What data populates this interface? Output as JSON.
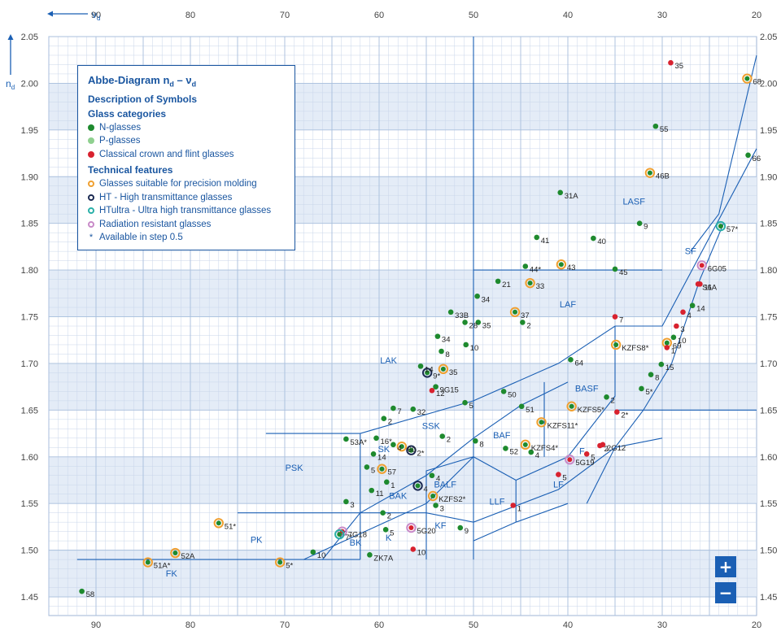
{
  "colors": {
    "n_glass": "#1e8a2e",
    "p_glass": "#8fd08f",
    "classical": "#d8222f",
    "precision_ring": "#f0a030",
    "ht_ring": "#1b2a52",
    "htultra_ring": "#2ab0a8",
    "rad_ring": "#c88ac8",
    "boundary": "#1a5fb4",
    "band": "#e4ecf7",
    "grid": "#c9d6ea",
    "zoom": "#1a5fb4"
  },
  "axes": {
    "x_name_main": "ν",
    "x_name_sub": "d",
    "y_name_main": "n",
    "y_name_sub": "d"
  },
  "legend": {
    "title": "Abbe-Diagram nₐ – νₐ",
    "title_main": "Abbe-Diagram n",
    "title_sub1": "d",
    "title_mid": " – ν",
    "title_sub2": "d",
    "subtitle": "Description of Symbols",
    "cat_head": "Glass categories",
    "cat_items": [
      "N-glasses",
      "P-glasses",
      "Classical crown and flint glasses"
    ],
    "tech_head": "Technical features",
    "tech_items": [
      "Glasses suitable for precision molding",
      "HT - High transmittance glasses",
      "HTultra - Ultra high transmittance glasses",
      "Radiation resistant glasses",
      "Available in step 0.5"
    ]
  },
  "zoom": {
    "in_label": "+",
    "out_label": "−"
  },
  "chart_data": {
    "type": "scatter",
    "title": "Abbe-Diagram nd – νd",
    "xlabel": "νd",
    "ylabel": "nd",
    "xlim": [
      95,
      20
    ],
    "ylim": [
      1.43,
      2.05
    ],
    "x_ticks": [
      90,
      80,
      70,
      60,
      50,
      40,
      30,
      20
    ],
    "y_ticks": [
      1.45,
      1.5,
      1.55,
      1.6,
      1.65,
      1.7,
      1.75,
      1.8,
      1.85,
      1.9,
      1.95,
      2.0,
      2.05
    ],
    "y_tick_labels": [
      "1.45",
      "1.50",
      "1.55",
      "1.60",
      "1.65",
      "1.70",
      "1.75",
      "1.80",
      "1.85",
      "1.90",
      "1.95",
      "2.00",
      "2.05"
    ],
    "grid": true,
    "legend_position": "top-left",
    "regions": [
      "LASF",
      "LAF",
      "LAK",
      "BASF",
      "SSK",
      "BAF",
      "PSK",
      "SK",
      "BALF",
      "BAK",
      "F",
      "LF",
      "LLF",
      "KF",
      "K",
      "BK",
      "PK",
      "FK",
      "SF"
    ],
    "glasses": [
      {
        "x": 29.1,
        "y": 2.022,
        "label": "35",
        "cat": "C",
        "ring": ""
      },
      {
        "x": 21.0,
        "y": 2.005,
        "label": "68",
        "cat": "N",
        "ring": "M"
      },
      {
        "x": 30.7,
        "y": 1.954,
        "label": "55",
        "cat": "N",
        "ring": ""
      },
      {
        "x": 20.9,
        "y": 1.923,
        "label": "66",
        "cat": "N",
        "ring": ""
      },
      {
        "x": 31.3,
        "y": 1.904,
        "label": "46B",
        "cat": "N",
        "ring": "M"
      },
      {
        "x": 40.8,
        "y": 1.883,
        "label": "31A",
        "cat": "N",
        "ring": ""
      },
      {
        "x": 32.4,
        "y": 1.85,
        "label": "9",
        "cat": "N",
        "ring": ""
      },
      {
        "x": 23.8,
        "y": 1.847,
        "label": "57*",
        "cat": "N",
        "ring": "U"
      },
      {
        "x": 43.3,
        "y": 1.835,
        "label": "41",
        "cat": "N",
        "ring": ""
      },
      {
        "x": 37.3,
        "y": 1.834,
        "label": "40",
        "cat": "N",
        "ring": ""
      },
      {
        "x": 40.7,
        "y": 1.806,
        "label": "43",
        "cat": "N",
        "ring": "M"
      },
      {
        "x": 25.8,
        "y": 1.805,
        "label": "6G05",
        "cat": "C",
        "ring": "R"
      },
      {
        "x": 44.5,
        "y": 1.804,
        "label": "44*",
        "cat": "N",
        "ring": ""
      },
      {
        "x": 35.0,
        "y": 1.801,
        "label": "45",
        "cat": "N",
        "ring": ""
      },
      {
        "x": 47.4,
        "y": 1.788,
        "label": "21",
        "cat": "N",
        "ring": ""
      },
      {
        "x": 44.0,
        "y": 1.786,
        "label": "33",
        "cat": "N",
        "ring": "M"
      },
      {
        "x": 26.0,
        "y": 1.785,
        "label": "11",
        "cat": "C",
        "ring": ""
      },
      {
        "x": 26.2,
        "y": 1.785,
        "label": "S6A",
        "cat": "C",
        "ring": ""
      },
      {
        "x": 49.6,
        "y": 1.772,
        "label": "34",
        "cat": "N",
        "ring": ""
      },
      {
        "x": 26.8,
        "y": 1.762,
        "label": "14",
        "cat": "N",
        "ring": ""
      },
      {
        "x": 45.6,
        "y": 1.755,
        "label": "37",
        "cat": "N",
        "ring": "M"
      },
      {
        "x": 52.4,
        "y": 1.755,
        "label": "33B",
        "cat": "N",
        "ring": ""
      },
      {
        "x": 27.8,
        "y": 1.755,
        "label": "4",
        "cat": "C",
        "ring": ""
      },
      {
        "x": 35.0,
        "y": 1.75,
        "label": "7",
        "cat": "C",
        "ring": ""
      },
      {
        "x": 50.9,
        "y": 1.744,
        "label": "28",
        "cat": "N",
        "ring": ""
      },
      {
        "x": 49.5,
        "y": 1.744,
        "label": "35",
        "cat": "N",
        "ring": ""
      },
      {
        "x": 44.8,
        "y": 1.744,
        "label": "2",
        "cat": "N",
        "ring": ""
      },
      {
        "x": 28.5,
        "y": 1.74,
        "label": "3",
        "cat": "C",
        "ring": ""
      },
      {
        "x": 28.8,
        "y": 1.728,
        "label": "10",
        "cat": "N",
        "ring": ""
      },
      {
        "x": 53.8,
        "y": 1.729,
        "label": "34",
        "cat": "N",
        "ring": ""
      },
      {
        "x": 29.5,
        "y": 1.722,
        "label": "69",
        "cat": "N",
        "ring": "M"
      },
      {
        "x": 34.9,
        "y": 1.72,
        "label": "KZFS8*",
        "cat": "N",
        "ring": "M"
      },
      {
        "x": 29.5,
        "y": 1.717,
        "label": "1",
        "cat": "C",
        "ring": ""
      },
      {
        "x": 50.8,
        "y": 1.72,
        "label": "10",
        "cat": "N",
        "ring": ""
      },
      {
        "x": 53.4,
        "y": 1.713,
        "label": "8",
        "cat": "N",
        "ring": ""
      },
      {
        "x": 39.7,
        "y": 1.704,
        "label": "64",
        "cat": "N",
        "ring": ""
      },
      {
        "x": 30.1,
        "y": 1.699,
        "label": "15",
        "cat": "N",
        "ring": ""
      },
      {
        "x": 55.6,
        "y": 1.697,
        "label": "14",
        "cat": "N",
        "ring": ""
      },
      {
        "x": 53.2,
        "y": 1.694,
        "label": "35",
        "cat": "N",
        "ring": "M"
      },
      {
        "x": 54.9,
        "y": 1.69,
        "label": "9*",
        "cat": "N",
        "ring": "H"
      },
      {
        "x": 31.2,
        "y": 1.688,
        "label": "8",
        "cat": "N",
        "ring": ""
      },
      {
        "x": 54.0,
        "y": 1.675,
        "label": "9G15",
        "cat": "N",
        "ring": ""
      },
      {
        "x": 54.4,
        "y": 1.671,
        "label": "12",
        "cat": "C",
        "ring": ""
      },
      {
        "x": 46.8,
        "y": 1.67,
        "label": "50",
        "cat": "N",
        "ring": ""
      },
      {
        "x": 32.2,
        "y": 1.673,
        "label": "5*",
        "cat": "N",
        "ring": ""
      },
      {
        "x": 35.9,
        "y": 1.664,
        "label": "2",
        "cat": "N",
        "ring": ""
      },
      {
        "x": 50.9,
        "y": 1.658,
        "label": "5",
        "cat": "N",
        "ring": ""
      },
      {
        "x": 39.6,
        "y": 1.654,
        "label": "KZFS5*",
        "cat": "N",
        "ring": "M"
      },
      {
        "x": 44.9,
        "y": 1.654,
        "label": "51",
        "cat": "N",
        "ring": ""
      },
      {
        "x": 56.4,
        "y": 1.651,
        "label": "32",
        "cat": "N",
        "ring": ""
      },
      {
        "x": 58.5,
        "y": 1.652,
        "label": "7",
        "cat": "N",
        "ring": ""
      },
      {
        "x": 34.8,
        "y": 1.648,
        "label": "2*",
        "cat": "C",
        "ring": ""
      },
      {
        "x": 59.5,
        "y": 1.641,
        "label": "2",
        "cat": "N",
        "ring": ""
      },
      {
        "x": 42.8,
        "y": 1.637,
        "label": "KZFS11*",
        "cat": "N",
        "ring": "M"
      },
      {
        "x": 53.3,
        "y": 1.622,
        "label": "2",
        "cat": "N",
        "ring": ""
      },
      {
        "x": 63.5,
        "y": 1.619,
        "label": "53A*",
        "cat": "N",
        "ring": ""
      },
      {
        "x": 60.3,
        "y": 1.62,
        "label": "16*",
        "cat": "N",
        "ring": ""
      },
      {
        "x": 49.8,
        "y": 1.617,
        "label": "8",
        "cat": "N",
        "ring": ""
      },
      {
        "x": 44.5,
        "y": 1.613,
        "label": "KZFS4*",
        "cat": "N",
        "ring": "M"
      },
      {
        "x": 58.5,
        "y": 1.613,
        "label": "4",
        "cat": "N",
        "ring": ""
      },
      {
        "x": 57.6,
        "y": 1.611,
        "label": "60",
        "cat": "N",
        "ring": "M"
      },
      {
        "x": 56.6,
        "y": 1.607,
        "label": "2*",
        "cat": "N",
        "ring": "H"
      },
      {
        "x": 36.3,
        "y": 1.613,
        "label": "2G12",
        "cat": "C",
        "ring": ""
      },
      {
        "x": 46.6,
        "y": 1.609,
        "label": "52",
        "cat": "N",
        "ring": ""
      },
      {
        "x": 43.9,
        "y": 1.605,
        "label": "4",
        "cat": "N",
        "ring": ""
      },
      {
        "x": 36.6,
        "y": 1.612,
        "label": "2",
        "cat": "C",
        "ring": ""
      },
      {
        "x": 60.6,
        "y": 1.603,
        "label": "14",
        "cat": "N",
        "ring": ""
      },
      {
        "x": 38.0,
        "y": 1.603,
        "label": "5",
        "cat": "C",
        "ring": ""
      },
      {
        "x": 39.8,
        "y": 1.597,
        "label": "5G19",
        "cat": "C",
        "ring": "R"
      },
      {
        "x": 61.3,
        "y": 1.589,
        "label": "5",
        "cat": "N",
        "ring": ""
      },
      {
        "x": 59.7,
        "y": 1.587,
        "label": "57",
        "cat": "N",
        "ring": "M"
      },
      {
        "x": 54.4,
        "y": 1.58,
        "label": "4",
        "cat": "N",
        "ring": ""
      },
      {
        "x": 41.0,
        "y": 1.581,
        "label": "5",
        "cat": "C",
        "ring": ""
      },
      {
        "x": 59.2,
        "y": 1.573,
        "label": "1",
        "cat": "N",
        "ring": ""
      },
      {
        "x": 55.9,
        "y": 1.569,
        "label": "4",
        "cat": "N",
        "ring": "H"
      },
      {
        "x": 60.8,
        "y": 1.564,
        "label": "11",
        "cat": "N",
        "ring": ""
      },
      {
        "x": 54.3,
        "y": 1.558,
        "label": "KZFS2*",
        "cat": "N",
        "ring": "M"
      },
      {
        "x": 63.5,
        "y": 1.552,
        "label": "3",
        "cat": "N",
        "ring": ""
      },
      {
        "x": 45.8,
        "y": 1.548,
        "label": "1",
        "cat": "C",
        "ring": ""
      },
      {
        "x": 54.0,
        "y": 1.548,
        "label": "3",
        "cat": "N",
        "ring": ""
      },
      {
        "x": 59.6,
        "y": 1.54,
        "label": "2",
        "cat": "N",
        "ring": ""
      },
      {
        "x": 77.0,
        "y": 1.529,
        "label": "51*",
        "cat": "N",
        "ring": "M"
      },
      {
        "x": 56.6,
        "y": 1.524,
        "label": "5G20",
        "cat": "C",
        "ring": "R"
      },
      {
        "x": 51.4,
        "y": 1.524,
        "label": "9",
        "cat": "N",
        "ring": ""
      },
      {
        "x": 59.3,
        "y": 1.522,
        "label": "5",
        "cat": "N",
        "ring": ""
      },
      {
        "x": 63.9,
        "y": 1.52,
        "label": "7G18",
        "cat": "C",
        "ring": "R"
      },
      {
        "x": 64.2,
        "y": 1.517,
        "label": "7*",
        "cat": "N",
        "ring": "U"
      },
      {
        "x": 56.4,
        "y": 1.501,
        "label": "10",
        "cat": "C",
        "ring": ""
      },
      {
        "x": 81.6,
        "y": 1.497,
        "label": "52A",
        "cat": "N",
        "ring": "M"
      },
      {
        "x": 67.0,
        "y": 1.498,
        "label": "10",
        "cat": "N",
        "ring": ""
      },
      {
        "x": 61.0,
        "y": 1.495,
        "label": "ZK7A",
        "cat": "N",
        "ring": ""
      },
      {
        "x": 84.5,
        "y": 1.487,
        "label": "51A*",
        "cat": "N",
        "ring": "M"
      },
      {
        "x": 70.5,
        "y": 1.487,
        "label": "5*",
        "cat": "N",
        "ring": "M"
      },
      {
        "x": 91.5,
        "y": 1.456,
        "label": "58",
        "cat": "N",
        "ring": ""
      }
    ]
  }
}
